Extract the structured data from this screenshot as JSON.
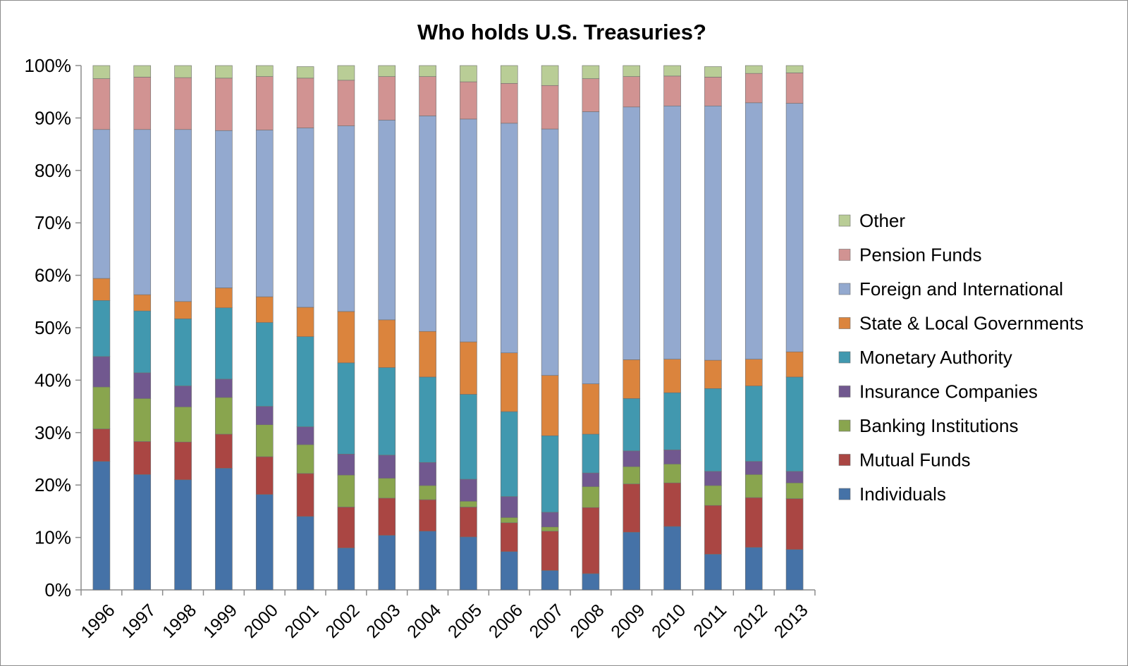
{
  "chart_data": {
    "type": "bar",
    "stacked": true,
    "title": "Who holds U.S. Treasuries?",
    "xlabel": "",
    "ylabel": "",
    "ylim": [
      0,
      100
    ],
    "y_ticks": [
      "0%",
      "10%",
      "20%",
      "30%",
      "40%",
      "50%",
      "60%",
      "70%",
      "80%",
      "90%",
      "100%"
    ],
    "grid": false,
    "legend_position": "right",
    "categories": [
      "1996",
      "1997",
      "1998",
      "1999",
      "2000",
      "2001",
      "2002",
      "2003",
      "2004",
      "2005",
      "2006",
      "2007",
      "2008",
      "2009",
      "2010",
      "2011",
      "2012",
      "2013"
    ],
    "series": [
      {
        "name": "Individuals",
        "color": "#4572a7",
        "values": [
          24.5,
          22.0,
          21.0,
          23.2,
          18.2,
          14.0,
          8.0,
          10.4,
          11.2,
          10.1,
          7.3,
          3.7,
          3.1,
          11.0,
          12.1,
          6.8,
          8.1,
          7.7
        ]
      },
      {
        "name": "Mutual Funds",
        "color": "#aa4643",
        "values": [
          6.2,
          6.3,
          7.2,
          6.5,
          7.2,
          8.2,
          7.8,
          7.1,
          6.0,
          5.7,
          5.5,
          7.5,
          12.6,
          9.2,
          8.3,
          9.3,
          9.5,
          9.7
        ]
      },
      {
        "name": "Banking Institutions",
        "color": "#89a54e",
        "values": [
          8.0,
          8.2,
          6.7,
          7.0,
          6.1,
          5.5,
          6.1,
          3.8,
          2.7,
          1.1,
          1.0,
          0.8,
          4.0,
          3.3,
          3.6,
          3.8,
          4.4,
          3.0
        ]
      },
      {
        "name": "Insurance Companies",
        "color": "#71588f",
        "values": [
          5.8,
          4.9,
          4.0,
          3.5,
          3.5,
          3.4,
          4.0,
          4.4,
          4.4,
          4.2,
          4.0,
          2.8,
          2.6,
          3.0,
          2.7,
          2.7,
          2.5,
          2.2
        ]
      },
      {
        "name": "Monetary Authority",
        "color": "#4198af",
        "values": [
          10.7,
          11.8,
          12.8,
          13.6,
          16.0,
          17.2,
          17.4,
          16.7,
          16.3,
          16.2,
          16.2,
          14.6,
          7.4,
          10.0,
          10.9,
          15.8,
          14.4,
          18.0
        ]
      },
      {
        "name": "State & Local Governments",
        "color": "#db843d",
        "values": [
          4.2,
          3.1,
          3.3,
          3.8,
          4.9,
          5.6,
          9.8,
          9.1,
          8.7,
          10.0,
          11.2,
          11.5,
          9.6,
          7.4,
          6.4,
          5.4,
          5.1,
          4.8
        ]
      },
      {
        "name": "Foreign and International",
        "color": "#93a9cf",
        "values": [
          28.4,
          31.5,
          32.8,
          30.0,
          31.8,
          34.2,
          35.4,
          38.1,
          41.1,
          42.5,
          43.8,
          47.0,
          51.9,
          48.2,
          48.3,
          48.5,
          48.9,
          47.4
        ]
      },
      {
        "name": "Pension Funds",
        "color": "#d19392",
        "values": [
          9.7,
          10.0,
          9.9,
          10.0,
          10.2,
          9.5,
          8.7,
          8.3,
          7.5,
          7.1,
          7.6,
          8.3,
          6.3,
          5.8,
          5.7,
          5.5,
          5.6,
          5.8
        ]
      },
      {
        "name": "Other",
        "color": "#b9cd96",
        "values": [
          2.5,
          2.2,
          2.3,
          2.4,
          2.1,
          2.2,
          2.8,
          2.1,
          2.1,
          3.1,
          3.4,
          3.8,
          2.5,
          2.1,
          2.0,
          2.0,
          1.5,
          1.4
        ]
      }
    ]
  }
}
